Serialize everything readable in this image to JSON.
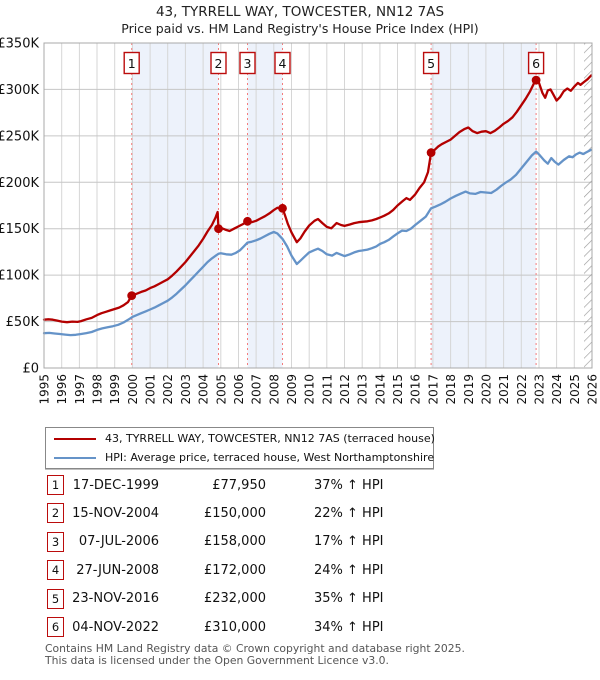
{
  "header": {
    "title": "43, TYRRELL WAY, TOWCESTER, NN12 7AS",
    "subtitle": "Price paid vs. HM Land Registry's House Price Index (HPI)"
  },
  "chart_data": {
    "type": "line",
    "xlim": [
      1995,
      2026
    ],
    "ylim_k": [
      0,
      350
    ],
    "x_ticks": [
      1995,
      1996,
      1997,
      1998,
      1999,
      2000,
      2001,
      2002,
      2003,
      2004,
      2005,
      2006,
      2007,
      2008,
      2009,
      2010,
      2011,
      2012,
      2013,
      2014,
      2015,
      2016,
      2017,
      2018,
      2019,
      2020,
      2021,
      2022,
      2023,
      2024,
      2025,
      2026
    ],
    "y_ticks": [
      {
        "v": 350,
        "label": "£350K"
      },
      {
        "v": 300,
        "label": "£300K"
      },
      {
        "v": 250,
        "label": "£250K"
      },
      {
        "v": 200,
        "label": "£200K"
      },
      {
        "v": 150,
        "label": "£150K"
      },
      {
        "v": 100,
        "label": "£100K"
      },
      {
        "v": 50,
        "label": "£50K"
      },
      {
        "v": 0,
        "label": "£0"
      }
    ],
    "colors": {
      "property": "#b30000",
      "hpi": "#6593c8",
      "band": "#edf2fb",
      "dashed": "#f47c7c",
      "grid_v": "#d6d6d6",
      "grid_h": "#c6c6c6",
      "border": "#a8a8a8",
      "hatch": "#9a9a9a",
      "badge_border": "#bb0c0c"
    },
    "shaded_bands": [
      [
        1999.96,
        2004.87
      ],
      [
        2006.51,
        2008.49
      ],
      [
        2016.9,
        2022.84
      ]
    ],
    "hatch_from": 2025.55,
    "grid": true,
    "legend_position": "bottom",
    "series": [
      {
        "name": "property",
        "legend": "43, TYRRELL WAY, TOWCESTER, NN12 7AS (terraced house)",
        "color_key": "property",
        "points": [
          [
            1995,
            52
          ],
          [
            1995.25,
            52.5
          ],
          [
            1995.5,
            52
          ],
          [
            1995.75,
            51
          ],
          [
            1996,
            50
          ],
          [
            1996.3,
            49.3
          ],
          [
            1996.6,
            50
          ],
          [
            1996.9,
            49.6
          ],
          [
            1997.1,
            50.5
          ],
          [
            1997.4,
            52.5
          ],
          [
            1997.7,
            54
          ],
          [
            1998,
            57
          ],
          [
            1998.25,
            59
          ],
          [
            1998.5,
            60.5
          ],
          [
            1998.75,
            62
          ],
          [
            1999,
            63.5
          ],
          [
            1999.25,
            65
          ],
          [
            1999.5,
            67.5
          ],
          [
            1999.75,
            71
          ],
          [
            1999.96,
            77.95
          ],
          [
            2000.25,
            80
          ],
          [
            2000.5,
            82
          ],
          [
            2000.75,
            83.5
          ],
          [
            2001,
            86
          ],
          [
            2001.25,
            88
          ],
          [
            2001.5,
            90.5
          ],
          [
            2001.75,
            93
          ],
          [
            2002,
            95.5
          ],
          [
            2002.25,
            99.5
          ],
          [
            2002.5,
            104
          ],
          [
            2002.75,
            109
          ],
          [
            2003,
            114
          ],
          [
            2003.25,
            120
          ],
          [
            2003.5,
            126
          ],
          [
            2003.75,
            132
          ],
          [
            2004,
            139
          ],
          [
            2004.25,
            147
          ],
          [
            2004.5,
            154
          ],
          [
            2004.7,
            162
          ],
          [
            2004.82,
            168
          ],
          [
            2004.87,
            150
          ],
          [
            2005,
            151
          ],
          [
            2005.25,
            149
          ],
          [
            2005.5,
            147.5
          ],
          [
            2005.75,
            150
          ],
          [
            2006,
            152.5
          ],
          [
            2006.25,
            155
          ],
          [
            2006.51,
            158
          ],
          [
            2006.75,
            157
          ],
          [
            2007,
            158.5
          ],
          [
            2007.25,
            161
          ],
          [
            2007.5,
            163.5
          ],
          [
            2007.75,
            166.5
          ],
          [
            2008,
            170
          ],
          [
            2008.2,
            172.5
          ],
          [
            2008.49,
            172
          ],
          [
            2008.62,
            165
          ],
          [
            2008.8,
            155
          ],
          [
            2009,
            146
          ],
          [
            2009.3,
            135.5
          ],
          [
            2009.5,
            139.5
          ],
          [
            2009.75,
            147
          ],
          [
            2010,
            153.5
          ],
          [
            2010.3,
            158.5
          ],
          [
            2010.5,
            160.5
          ],
          [
            2010.75,
            156
          ],
          [
            2011,
            152
          ],
          [
            2011.25,
            150.5
          ],
          [
            2011.55,
            156
          ],
          [
            2011.8,
            154
          ],
          [
            2012,
            153
          ],
          [
            2012.3,
            154.5
          ],
          [
            2012.55,
            156
          ],
          [
            2012.8,
            157
          ],
          [
            2013,
            157.5
          ],
          [
            2013.3,
            158
          ],
          [
            2013.55,
            159
          ],
          [
            2013.8,
            160.5
          ],
          [
            2014,
            162
          ],
          [
            2014.25,
            164
          ],
          [
            2014.5,
            166.5
          ],
          [
            2014.75,
            170
          ],
          [
            2015,
            175
          ],
          [
            2015.3,
            180
          ],
          [
            2015.5,
            183
          ],
          [
            2015.7,
            181
          ],
          [
            2016,
            187
          ],
          [
            2016.25,
            194
          ],
          [
            2016.5,
            200
          ],
          [
            2016.72,
            211
          ],
          [
            2016.9,
            232
          ],
          [
            2017.1,
            235
          ],
          [
            2017.3,
            238.5
          ],
          [
            2017.5,
            241
          ],
          [
            2017.75,
            243.5
          ],
          [
            2018,
            246
          ],
          [
            2018.25,
            250
          ],
          [
            2018.5,
            254
          ],
          [
            2018.8,
            257.5
          ],
          [
            2019,
            259
          ],
          [
            2019.25,
            255
          ],
          [
            2019.5,
            253
          ],
          [
            2019.75,
            254.5
          ],
          [
            2020,
            255
          ],
          [
            2020.25,
            253
          ],
          [
            2020.5,
            255.5
          ],
          [
            2020.75,
            259
          ],
          [
            2021,
            263
          ],
          [
            2021.25,
            266
          ],
          [
            2021.5,
            270
          ],
          [
            2021.75,
            276
          ],
          [
            2022,
            283
          ],
          [
            2022.25,
            290
          ],
          [
            2022.5,
            298
          ],
          [
            2022.7,
            306
          ],
          [
            2022.84,
            310
          ],
          [
            2023,
            307
          ],
          [
            2023.2,
            296
          ],
          [
            2023.35,
            291
          ],
          [
            2023.5,
            299
          ],
          [
            2023.65,
            300
          ],
          [
            2023.8,
            295
          ],
          [
            2024,
            288
          ],
          [
            2024.2,
            292
          ],
          [
            2024.4,
            298
          ],
          [
            2024.6,
            301
          ],
          [
            2024.8,
            298.5
          ],
          [
            2025,
            303
          ],
          [
            2025.2,
            307
          ],
          [
            2025.35,
            305
          ],
          [
            2025.55,
            308
          ],
          [
            2025.75,
            311
          ],
          [
            2025.95,
            315
          ]
        ]
      },
      {
        "name": "hpi",
        "legend": "HPI: Average price, terraced house, West Northamptonshire",
        "color_key": "hpi",
        "points": [
          [
            1995,
            37.5
          ],
          [
            1995.3,
            37.8
          ],
          [
            1995.6,
            37.2
          ],
          [
            1995.9,
            36.6
          ],
          [
            1996.2,
            36
          ],
          [
            1996.5,
            35.4
          ],
          [
            1996.8,
            35.8
          ],
          [
            1997.1,
            36.6
          ],
          [
            1997.4,
            37.6
          ],
          [
            1997.7,
            38.8
          ],
          [
            1998,
            41
          ],
          [
            1998.3,
            42.6
          ],
          [
            1998.6,
            43.8
          ],
          [
            1998.9,
            45
          ],
          [
            1999.2,
            46.5
          ],
          [
            1999.5,
            49
          ],
          [
            1999.8,
            52.5
          ],
          [
            2000,
            55
          ],
          [
            2000.25,
            57
          ],
          [
            2000.5,
            59
          ],
          [
            2000.75,
            61
          ],
          [
            2001,
            63
          ],
          [
            2001.25,
            65
          ],
          [
            2001.5,
            67.5
          ],
          [
            2001.75,
            70
          ],
          [
            2002,
            72.5
          ],
          [
            2002.25,
            76
          ],
          [
            2002.5,
            80
          ],
          [
            2002.75,
            84.5
          ],
          [
            2003,
            89
          ],
          [
            2003.25,
            94
          ],
          [
            2003.5,
            99
          ],
          [
            2003.75,
            104
          ],
          [
            2004,
            109
          ],
          [
            2004.25,
            114
          ],
          [
            2004.5,
            118
          ],
          [
            2004.75,
            121.5
          ],
          [
            2004.87,
            123
          ],
          [
            2005,
            123.5
          ],
          [
            2005.3,
            122.5
          ],
          [
            2005.6,
            122
          ],
          [
            2005.85,
            124
          ],
          [
            2006.1,
            127
          ],
          [
            2006.3,
            131
          ],
          [
            2006.51,
            135
          ],
          [
            2006.75,
            136
          ],
          [
            2007,
            137.5
          ],
          [
            2007.25,
            139.5
          ],
          [
            2007.5,
            142
          ],
          [
            2007.75,
            144.5
          ],
          [
            2008,
            146.5
          ],
          [
            2008.2,
            145
          ],
          [
            2008.49,
            139
          ],
          [
            2008.75,
            131
          ],
          [
            2009,
            121
          ],
          [
            2009.3,
            112
          ],
          [
            2009.5,
            115.5
          ],
          [
            2009.75,
            120
          ],
          [
            2010,
            124.5
          ],
          [
            2010.3,
            127
          ],
          [
            2010.5,
            128.5
          ],
          [
            2010.75,
            126
          ],
          [
            2011,
            122.5
          ],
          [
            2011.3,
            121
          ],
          [
            2011.55,
            124
          ],
          [
            2011.8,
            122
          ],
          [
            2012,
            120.5
          ],
          [
            2012.3,
            122.5
          ],
          [
            2012.55,
            124.5
          ],
          [
            2012.8,
            126
          ],
          [
            2013,
            126.5
          ],
          [
            2013.3,
            127.5
          ],
          [
            2013.55,
            129
          ],
          [
            2013.8,
            131
          ],
          [
            2014,
            133.5
          ],
          [
            2014.25,
            135.5
          ],
          [
            2014.5,
            138
          ],
          [
            2014.75,
            141.5
          ],
          [
            2015,
            145
          ],
          [
            2015.25,
            148
          ],
          [
            2015.5,
            147.5
          ],
          [
            2015.75,
            150
          ],
          [
            2016,
            154
          ],
          [
            2016.3,
            158.5
          ],
          [
            2016.6,
            163
          ],
          [
            2016.9,
            172
          ],
          [
            2017.1,
            173.5
          ],
          [
            2017.4,
            176
          ],
          [
            2017.7,
            179
          ],
          [
            2018,
            182.5
          ],
          [
            2018.3,
            185.5
          ],
          [
            2018.6,
            188
          ],
          [
            2018.85,
            190
          ],
          [
            2019.1,
            188
          ],
          [
            2019.4,
            187.5
          ],
          [
            2019.7,
            189.5
          ],
          [
            2020,
            189
          ],
          [
            2020.3,
            188.5
          ],
          [
            2020.6,
            192
          ],
          [
            2020.85,
            196
          ],
          [
            2021.1,
            199.5
          ],
          [
            2021.4,
            203
          ],
          [
            2021.7,
            208
          ],
          [
            2022,
            215
          ],
          [
            2022.3,
            222
          ],
          [
            2022.6,
            229
          ],
          [
            2022.84,
            233
          ],
          [
            2023,
            230
          ],
          [
            2023.3,
            223.5
          ],
          [
            2023.5,
            220
          ],
          [
            2023.7,
            226
          ],
          [
            2023.9,
            222
          ],
          [
            2024.1,
            219
          ],
          [
            2024.4,
            224
          ],
          [
            2024.7,
            228
          ],
          [
            2024.9,
            227
          ],
          [
            2025.1,
            230
          ],
          [
            2025.3,
            232
          ],
          [
            2025.5,
            230.5
          ],
          [
            2025.75,
            233
          ],
          [
            2025.95,
            235
          ]
        ]
      }
    ],
    "sales": [
      {
        "n": "1",
        "x": 1999.96,
        "price_k": 77.95
      },
      {
        "n": "2",
        "x": 2004.87,
        "price_k": 150
      },
      {
        "n": "3",
        "x": 2006.51,
        "price_k": 158
      },
      {
        "n": "4",
        "x": 2008.49,
        "price_k": 172
      },
      {
        "n": "5",
        "x": 2016.9,
        "price_k": 232
      },
      {
        "n": "6",
        "x": 2022.84,
        "price_k": 310
      }
    ]
  },
  "legend": {
    "items": [
      {
        "label": "43, TYRRELL WAY, TOWCESTER, NN12 7AS (terraced house)",
        "color_key": "property"
      },
      {
        "label": "HPI: Average price, terraced house, West Northamptonshire",
        "color_key": "hpi"
      }
    ]
  },
  "table": {
    "rows": [
      {
        "n": "1",
        "date": "17-DEC-1999",
        "price": "£77,950",
        "vs_hpi": "37% ↑ HPI"
      },
      {
        "n": "2",
        "date": "15-NOV-2004",
        "price": "£150,000",
        "vs_hpi": "22% ↑ HPI"
      },
      {
        "n": "3",
        "date": "07-JUL-2006",
        "price": "£158,000",
        "vs_hpi": "17% ↑ HPI"
      },
      {
        "n": "4",
        "date": "27-JUN-2008",
        "price": "£172,000",
        "vs_hpi": "24% ↑ HPI"
      },
      {
        "n": "5",
        "date": "23-NOV-2016",
        "price": "£232,000",
        "vs_hpi": "35% ↑ HPI"
      },
      {
        "n": "6",
        "date": "04-NOV-2022",
        "price": "£310,000",
        "vs_hpi": "34% ↑ HPI"
      }
    ]
  },
  "footer": {
    "line1": "Contains HM Land Registry data © Crown copyright and database right 2025.",
    "line2": "This data is licensed under the Open Government Licence v3.0."
  }
}
